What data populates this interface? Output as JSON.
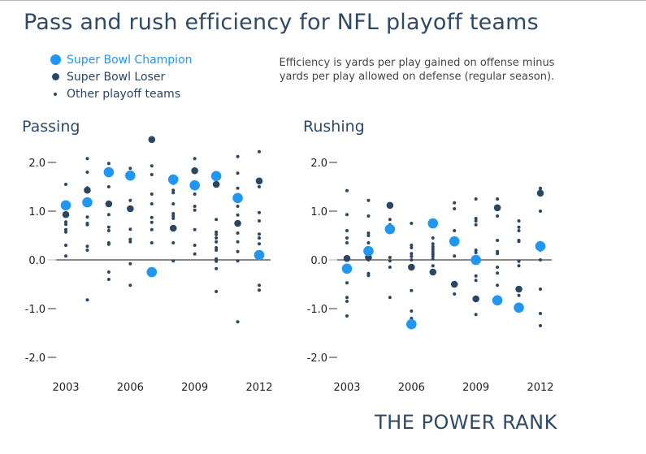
{
  "title": "Pass and rush efficiency for NFL playoff teams",
  "legend": [
    {
      "label": "Super Bowl Champion",
      "type": "champion"
    },
    {
      "label": "Super Bowl Loser",
      "type": "loser"
    },
    {
      "label": "Other playoff teams",
      "type": "other"
    }
  ],
  "note": [
    "Efficiency is yards per play gained on offense minus",
    "yards per play allowed on defense (regular season)."
  ],
  "brand": "THE POWER RANK",
  "colors": {
    "champion": "#2196f3",
    "loser": "#2b4663",
    "other": "#2b4663",
    "axis": "#444444",
    "text": "#2f4a66"
  },
  "chart_data": [
    {
      "type": "scatter",
      "title": "Passing",
      "xlabel": "",
      "ylabel": "",
      "x_ticks": [
        "2003",
        "2006",
        "2009",
        "2012"
      ],
      "y_ticks": [
        "2.0",
        "1.0",
        "0.0",
        "-1.0",
        "-2.0"
      ],
      "ylim": [
        -2.3,
        2.6
      ],
      "xlim": [
        2003,
        2012
      ],
      "legend": "top-left",
      "seasons": [
        {
          "year": 2003,
          "champion": 1.12,
          "loser": 0.93,
          "others": [
            1.55,
            1.15,
            0.78,
            0.73,
            0.62,
            0.57,
            0.3,
            0.08
          ]
        },
        {
          "year": 2004,
          "champion": 1.18,
          "loser": 1.43,
          "others": [
            2.08,
            1.8,
            1.48,
            0.88,
            0.75,
            0.72,
            0.28,
            0.2,
            -0.82
          ]
        },
        {
          "year": 2005,
          "champion": 1.8,
          "loser": 1.15,
          "others": [
            1.98,
            1.5,
            0.93,
            0.67,
            0.6,
            0.35,
            0.32,
            -0.25,
            -0.4
          ]
        },
        {
          "year": 2006,
          "champion": 1.73,
          "loser": 1.05,
          "others": [
            1.88,
            1.78,
            1.22,
            0.63,
            0.42,
            0.37,
            -0.08,
            -0.52
          ]
        },
        {
          "year": 2007,
          "champion": -0.25,
          "loser": 2.47,
          "others": [
            1.93,
            1.75,
            1.35,
            1.15,
            0.87,
            0.77,
            0.62,
            0.35
          ]
        },
        {
          "year": 2008,
          "champion": 1.65,
          "loser": 0.65,
          "others": [
            1.57,
            1.43,
            1.38,
            1.15,
            0.95,
            0.9,
            0.85,
            0.35,
            -0.02
          ]
        },
        {
          "year": 2009,
          "champion": 1.53,
          "loser": 1.83,
          "others": [
            2.08,
            1.57,
            1.35,
            1.1,
            1.02,
            0.62,
            0.3,
            0.12
          ]
        },
        {
          "year": 2010,
          "champion": 1.72,
          "loser": 1.55,
          "others": [
            0.83,
            0.57,
            0.52,
            0.45,
            0.37,
            0.25,
            0.2,
            0.02,
            -0.03,
            -0.18,
            -0.65
          ]
        },
        {
          "year": 2011,
          "champion": 1.27,
          "loser": 0.75,
          "others": [
            2.12,
            1.78,
            1.47,
            1.1,
            0.92,
            0.55,
            0.37,
            0.17,
            -0.02,
            -1.27
          ]
        },
        {
          "year": 2012,
          "champion": 0.1,
          "loser": 1.62,
          "others": [
            2.22,
            1.5,
            0.97,
            0.8,
            0.53,
            0.45,
            0.33,
            0.1,
            -0.52,
            -0.62
          ]
        }
      ]
    },
    {
      "type": "scatter",
      "title": "Rushing",
      "xlabel": "",
      "ylabel": "",
      "x_ticks": [
        "2003",
        "2006",
        "2009",
        "2012"
      ],
      "y_ticks": [
        "2.0",
        "1.0",
        "0.0",
        "-1.0",
        "-2.0"
      ],
      "ylim": [
        -2.3,
        2.6
      ],
      "xlim": [
        2003,
        2012
      ],
      "legend": "none",
      "seasons": [
        {
          "year": 2003,
          "champion": -0.18,
          "loser": 0.03,
          "others": [
            1.42,
            0.93,
            0.6,
            0.45,
            0.35,
            -0.47,
            -0.77,
            -0.85,
            -1.15
          ]
        },
        {
          "year": 2004,
          "champion": 0.18,
          "loser": 0.05,
          "others": [
            1.22,
            0.9,
            0.55,
            0.5,
            0.35,
            0.08,
            0.0,
            -0.28,
            -0.32
          ]
        },
        {
          "year": 2005,
          "champion": 0.63,
          "loser": 1.12,
          "others": [
            0.83,
            0.72,
            0.57,
            0.05,
            -0.02,
            -0.15,
            -0.77
          ]
        },
        {
          "year": 2006,
          "champion": -1.32,
          "loser": -0.15,
          "others": [
            0.75,
            0.3,
            0.25,
            0.13,
            0.07,
            0.0,
            -0.63,
            -1.05,
            -1.2
          ]
        },
        {
          "year": 2007,
          "champion": 0.75,
          "loser": -0.25,
          "others": [
            0.45,
            0.33,
            0.27,
            0.22,
            0.17,
            0.12,
            0.08,
            0.02,
            -0.12
          ]
        },
        {
          "year": 2008,
          "champion": 0.38,
          "loser": -0.5,
          "others": [
            1.17,
            1.05,
            0.6,
            0.45,
            0.08,
            -0.7
          ]
        },
        {
          "year": 2009,
          "champion": 0.0,
          "loser": -0.8,
          "others": [
            1.25,
            0.85,
            0.8,
            0.72,
            0.2,
            0.15,
            -0.33,
            -0.42,
            -1.12
          ]
        },
        {
          "year": 2010,
          "champion": -0.83,
          "loser": 1.07,
          "others": [
            1.25,
            0.9,
            0.4,
            0.17,
            0.13,
            -0.15,
            -0.27,
            -0.52
          ]
        },
        {
          "year": 2011,
          "champion": -0.98,
          "loser": -0.6,
          "others": [
            0.8,
            0.67,
            0.6,
            0.4,
            0.38,
            -0.03,
            -0.12,
            -0.73
          ]
        },
        {
          "year": 2012,
          "champion": 0.28,
          "loser": 1.37,
          "others": [
            1.47,
            1.42,
            1.0,
            0.35,
            0.25,
            0.2,
            0.0,
            -0.6,
            -1.1,
            -1.35
          ]
        }
      ]
    }
  ]
}
